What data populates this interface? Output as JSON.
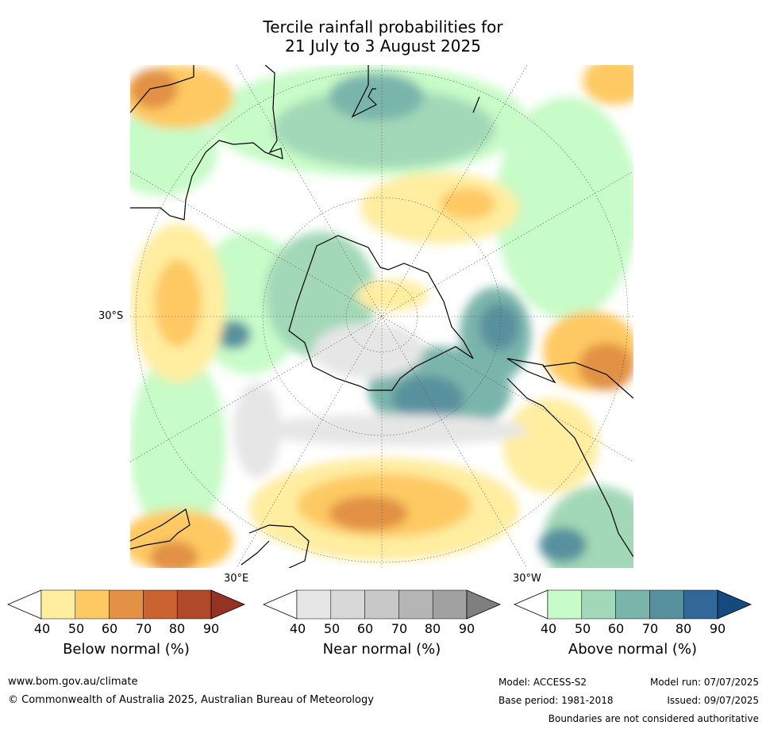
{
  "title": {
    "line1": "Tercile rainfall probabilities for",
    "line2": "21 July to 3 August 2025"
  },
  "map_labels": {
    "lat_30s": "30°S",
    "lon_30e": "30°E",
    "lon_30w": "30°W"
  },
  "colorbars": [
    {
      "name": "Below normal (%)",
      "ticks": [
        "40",
        "50",
        "60",
        "70",
        "80",
        "90"
      ],
      "colors": [
        "#ffffff",
        "#ffeda0",
        "#fec962",
        "#e29145",
        "#cb6331",
        "#b0492a",
        "#963222"
      ]
    },
    {
      "name": "Near normal (%)",
      "ticks": [
        "40",
        "50",
        "60",
        "70",
        "80",
        "90"
      ],
      "colors": [
        "#ffffff",
        "#e6e6e6",
        "#d8d8d8",
        "#c8c8c8",
        "#b5b5b5",
        "#a1a1a1",
        "#7f7f7f"
      ]
    },
    {
      "name": "Above normal (%)",
      "ticks": [
        "40",
        "50",
        "60",
        "70",
        "80",
        "90"
      ],
      "colors": [
        "#ffffff",
        "#c7fbc7",
        "#a2d8b7",
        "#7ab5ac",
        "#58919e",
        "#32679a",
        "#144a7e"
      ]
    }
  ],
  "footer": {
    "website": "www.bom.gov.au/climate",
    "copyright": "© Commonwealth of Australia 2025, Australian Bureau of Meteorology",
    "model": "Model: ACCESS-S2",
    "base_period": "Base period: 1981-2018",
    "model_run": "Model run: 07/07/2025",
    "issued": "Issued: 09/07/2025",
    "disclaimer": "Boundaries are not considered authoritative"
  }
}
